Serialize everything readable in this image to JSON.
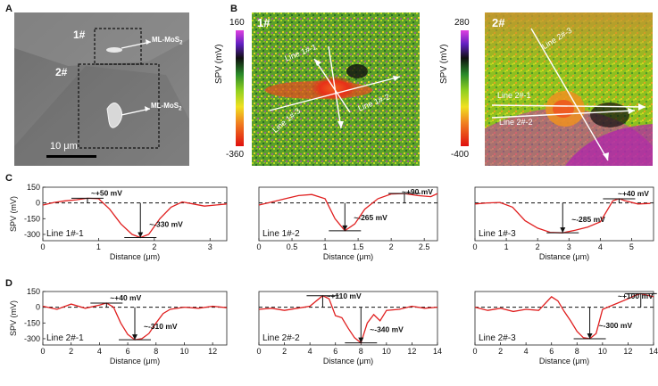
{
  "panels": {
    "A": {
      "letter": "A",
      "label_1": "1#",
      "label_2": "2#",
      "arrow_1": "ML-MoS",
      "arrow_2": "ML-MoS",
      "subscript": "2",
      "scale_bar": "10 μm"
    },
    "B": {
      "letter": "B",
      "map1": {
        "label": "1#",
        "cbar_max": "160",
        "cbar_min": "-360",
        "cbar_label": "SPV (mV)",
        "lines": [
          "Line 1#-1",
          "Line 1#-2",
          "Line 1#-3"
        ]
      },
      "map2": {
        "label": "2#",
        "cbar_max": "280",
        "cbar_min": "-400",
        "cbar_label": "SPV (mV)",
        "lines": [
          "Line 2#-3",
          "Line 2#-1",
          "Line 2#-2"
        ]
      }
    },
    "C": {
      "letter": "C"
    },
    "D": {
      "letter": "D"
    }
  },
  "chart_data": [
    {
      "type": "line",
      "name": "Line 1#-1",
      "ylabel": "SPV (mV)",
      "xlabel": "Distance (μm)",
      "xlim": [
        0,
        3.3
      ],
      "ylim": [
        -360,
        150
      ],
      "xticks": [
        0,
        1,
        2,
        3
      ],
      "yticks": [
        150,
        0,
        -150,
        -300
      ],
      "x": [
        0,
        0.2,
        0.4,
        0.6,
        0.8,
        1.0,
        1.2,
        1.4,
        1.6,
        1.75,
        1.9,
        2.1,
        2.3,
        2.5,
        2.7,
        2.9,
        3.1,
        3.3
      ],
      "y": [
        -20,
        5,
        20,
        30,
        45,
        40,
        -60,
        -200,
        -300,
        -330,
        -300,
        -150,
        -40,
        10,
        -10,
        -30,
        -20,
        -10
      ],
      "annotations": [
        "~+50 mV",
        "~-330 mV"
      ]
    },
    {
      "type": "line",
      "name": "Line 1#-2",
      "ylabel": "",
      "xlabel": "Distance (μm)",
      "xlim": [
        0,
        2.7
      ],
      "ylim": [
        -360,
        150
      ],
      "xticks": [
        0.0,
        0.5,
        1.0,
        1.5,
        2.0,
        2.5
      ],
      "yticks": [],
      "x": [
        0,
        0.2,
        0.4,
        0.6,
        0.8,
        1.0,
        1.15,
        1.3,
        1.45,
        1.6,
        1.8,
        2.0,
        2.2,
        2.4,
        2.6,
        2.7
      ],
      "y": [
        -20,
        10,
        40,
        70,
        80,
        40,
        -150,
        -265,
        -200,
        -60,
        40,
        85,
        90,
        70,
        60,
        90
      ],
      "annotations": [
        "~+90 mV",
        "~-265 mV"
      ]
    },
    {
      "type": "line",
      "name": "Line 1#-3",
      "ylabel": "",
      "xlabel": "Distance (μm)",
      "xlim": [
        0,
        5.7
      ],
      "ylim": [
        -360,
        150
      ],
      "xticks": [
        0,
        1,
        2,
        3,
        4,
        5
      ],
      "yticks": [],
      "x": [
        0,
        0.4,
        0.8,
        1.2,
        1.6,
        2.0,
        2.4,
        2.8,
        3.2,
        3.6,
        4.0,
        4.4,
        4.6,
        4.8,
        5.2,
        5.6
      ],
      "y": [
        -10,
        0,
        5,
        -40,
        -170,
        -240,
        -280,
        -285,
        -260,
        -230,
        -180,
        20,
        40,
        20,
        -10,
        -5
      ],
      "annotations": [
        "~+40 mV",
        "~-285 mV"
      ]
    },
    {
      "type": "line",
      "name": "Line 2#-1",
      "ylabel": "SPV (mV)",
      "xlabel": "Distance (μm)",
      "xlim": [
        0,
        13
      ],
      "ylim": [
        -360,
        150
      ],
      "xticks": [
        0,
        2,
        4,
        6,
        8,
        10,
        12
      ],
      "yticks": [
        150,
        0,
        -150,
        -300
      ],
      "x": [
        0,
        1,
        2,
        3,
        4,
        4.5,
        5,
        5.5,
        6,
        6.5,
        7,
        7.5,
        8,
        8.5,
        9,
        10,
        11,
        12,
        13
      ],
      "y": [
        10,
        -20,
        30,
        -10,
        20,
        40,
        0,
        -150,
        -260,
        -310,
        -300,
        -250,
        -150,
        -60,
        -20,
        0,
        -10,
        10,
        -5
      ],
      "annotations": [
        "~+40 mV",
        "~-310 mV"
      ]
    },
    {
      "type": "line",
      "name": "Line 2#-2",
      "ylabel": "",
      "xlabel": "Distance (μm)",
      "xlim": [
        0,
        14
      ],
      "ylim": [
        -360,
        150
      ],
      "xticks": [
        0,
        2,
        4,
        6,
        8,
        10,
        12,
        14
      ],
      "yticks": [],
      "x": [
        0,
        1,
        2,
        3,
        4,
        5,
        5.5,
        6,
        6.5,
        7,
        7.5,
        8,
        8.5,
        9,
        9.5,
        10,
        11,
        12,
        13,
        14
      ],
      "y": [
        -20,
        -10,
        -30,
        -10,
        10,
        110,
        80,
        -80,
        -100,
        -200,
        -290,
        -340,
        -150,
        -70,
        -130,
        -30,
        -20,
        10,
        -10,
        0
      ],
      "annotations": [
        "~+110 mV",
        "~-340 mV"
      ]
    },
    {
      "type": "line",
      "name": "Line 2#-3",
      "ylabel": "",
      "xlabel": "Distance (μm)",
      "xlim": [
        0,
        14
      ],
      "ylim": [
        -360,
        150
      ],
      "xticks": [
        0,
        2,
        4,
        6,
        8,
        10,
        12,
        14
      ],
      "yticks": [],
      "x": [
        0,
        1,
        2,
        3,
        4,
        5,
        6,
        6.5,
        7,
        7.5,
        8,
        8.5,
        9,
        9.5,
        10,
        11,
        12,
        12.5,
        13,
        14
      ],
      "y": [
        0,
        -30,
        -10,
        -40,
        -20,
        -30,
        100,
        60,
        -40,
        -130,
        -230,
        -290,
        -300,
        -250,
        -20,
        30,
        80,
        110,
        130,
        100
      ],
      "annotations": [
        "~+100 mV",
        "~-300 mV"
      ]
    }
  ]
}
